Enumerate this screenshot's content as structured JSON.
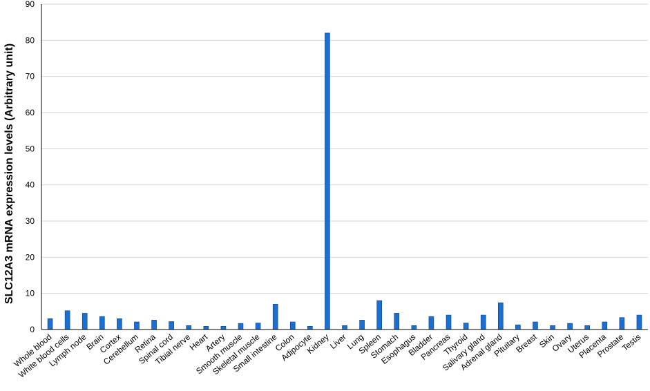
{
  "chart_data": {
    "type": "bar",
    "ylabel": "SLC12A3 mRNA expression levels (Arbitrary unit)",
    "ylim": [
      0,
      90
    ],
    "yticks": [
      0,
      10,
      20,
      30,
      40,
      50,
      60,
      70,
      80,
      90
    ],
    "grid": true,
    "bar_color": "#1a6fd0",
    "categories": [
      "Whole blood",
      "White blood cells",
      "Lymph node",
      "Brain",
      "Cortex",
      "Cerebellum",
      "Retina",
      "Spinal cord",
      "Tibial nerve",
      "Heart",
      "Artery",
      "Smooth muscle",
      "Skeletal muscle",
      "Small intestine",
      "Colon",
      "Adipocyte",
      "Kidney",
      "Liver",
      "Lung",
      "Spleen",
      "Stomach",
      "Esophagus",
      "Bladder",
      "Pancreas",
      "Thyroid",
      "Salivary gland",
      "Adrenal gland",
      "Pituitary",
      "Breast",
      "Skin",
      "Ovary",
      "Uterus",
      "Placenta",
      "Prostate",
      "Testis"
    ],
    "values": [
      3.0,
      5.2,
      4.5,
      3.6,
      3.0,
      2.1,
      2.6,
      2.2,
      1.1,
      0.9,
      0.9,
      1.7,
      1.8,
      7.0,
      2.1,
      0.9,
      82.0,
      1.1,
      2.6,
      8.0,
      4.5,
      1.1,
      3.6,
      4.0,
      1.8,
      4.0,
      7.4,
      1.3,
      2.1,
      1.1,
      1.7,
      1.1,
      2.1,
      3.3,
      4.0
    ]
  }
}
